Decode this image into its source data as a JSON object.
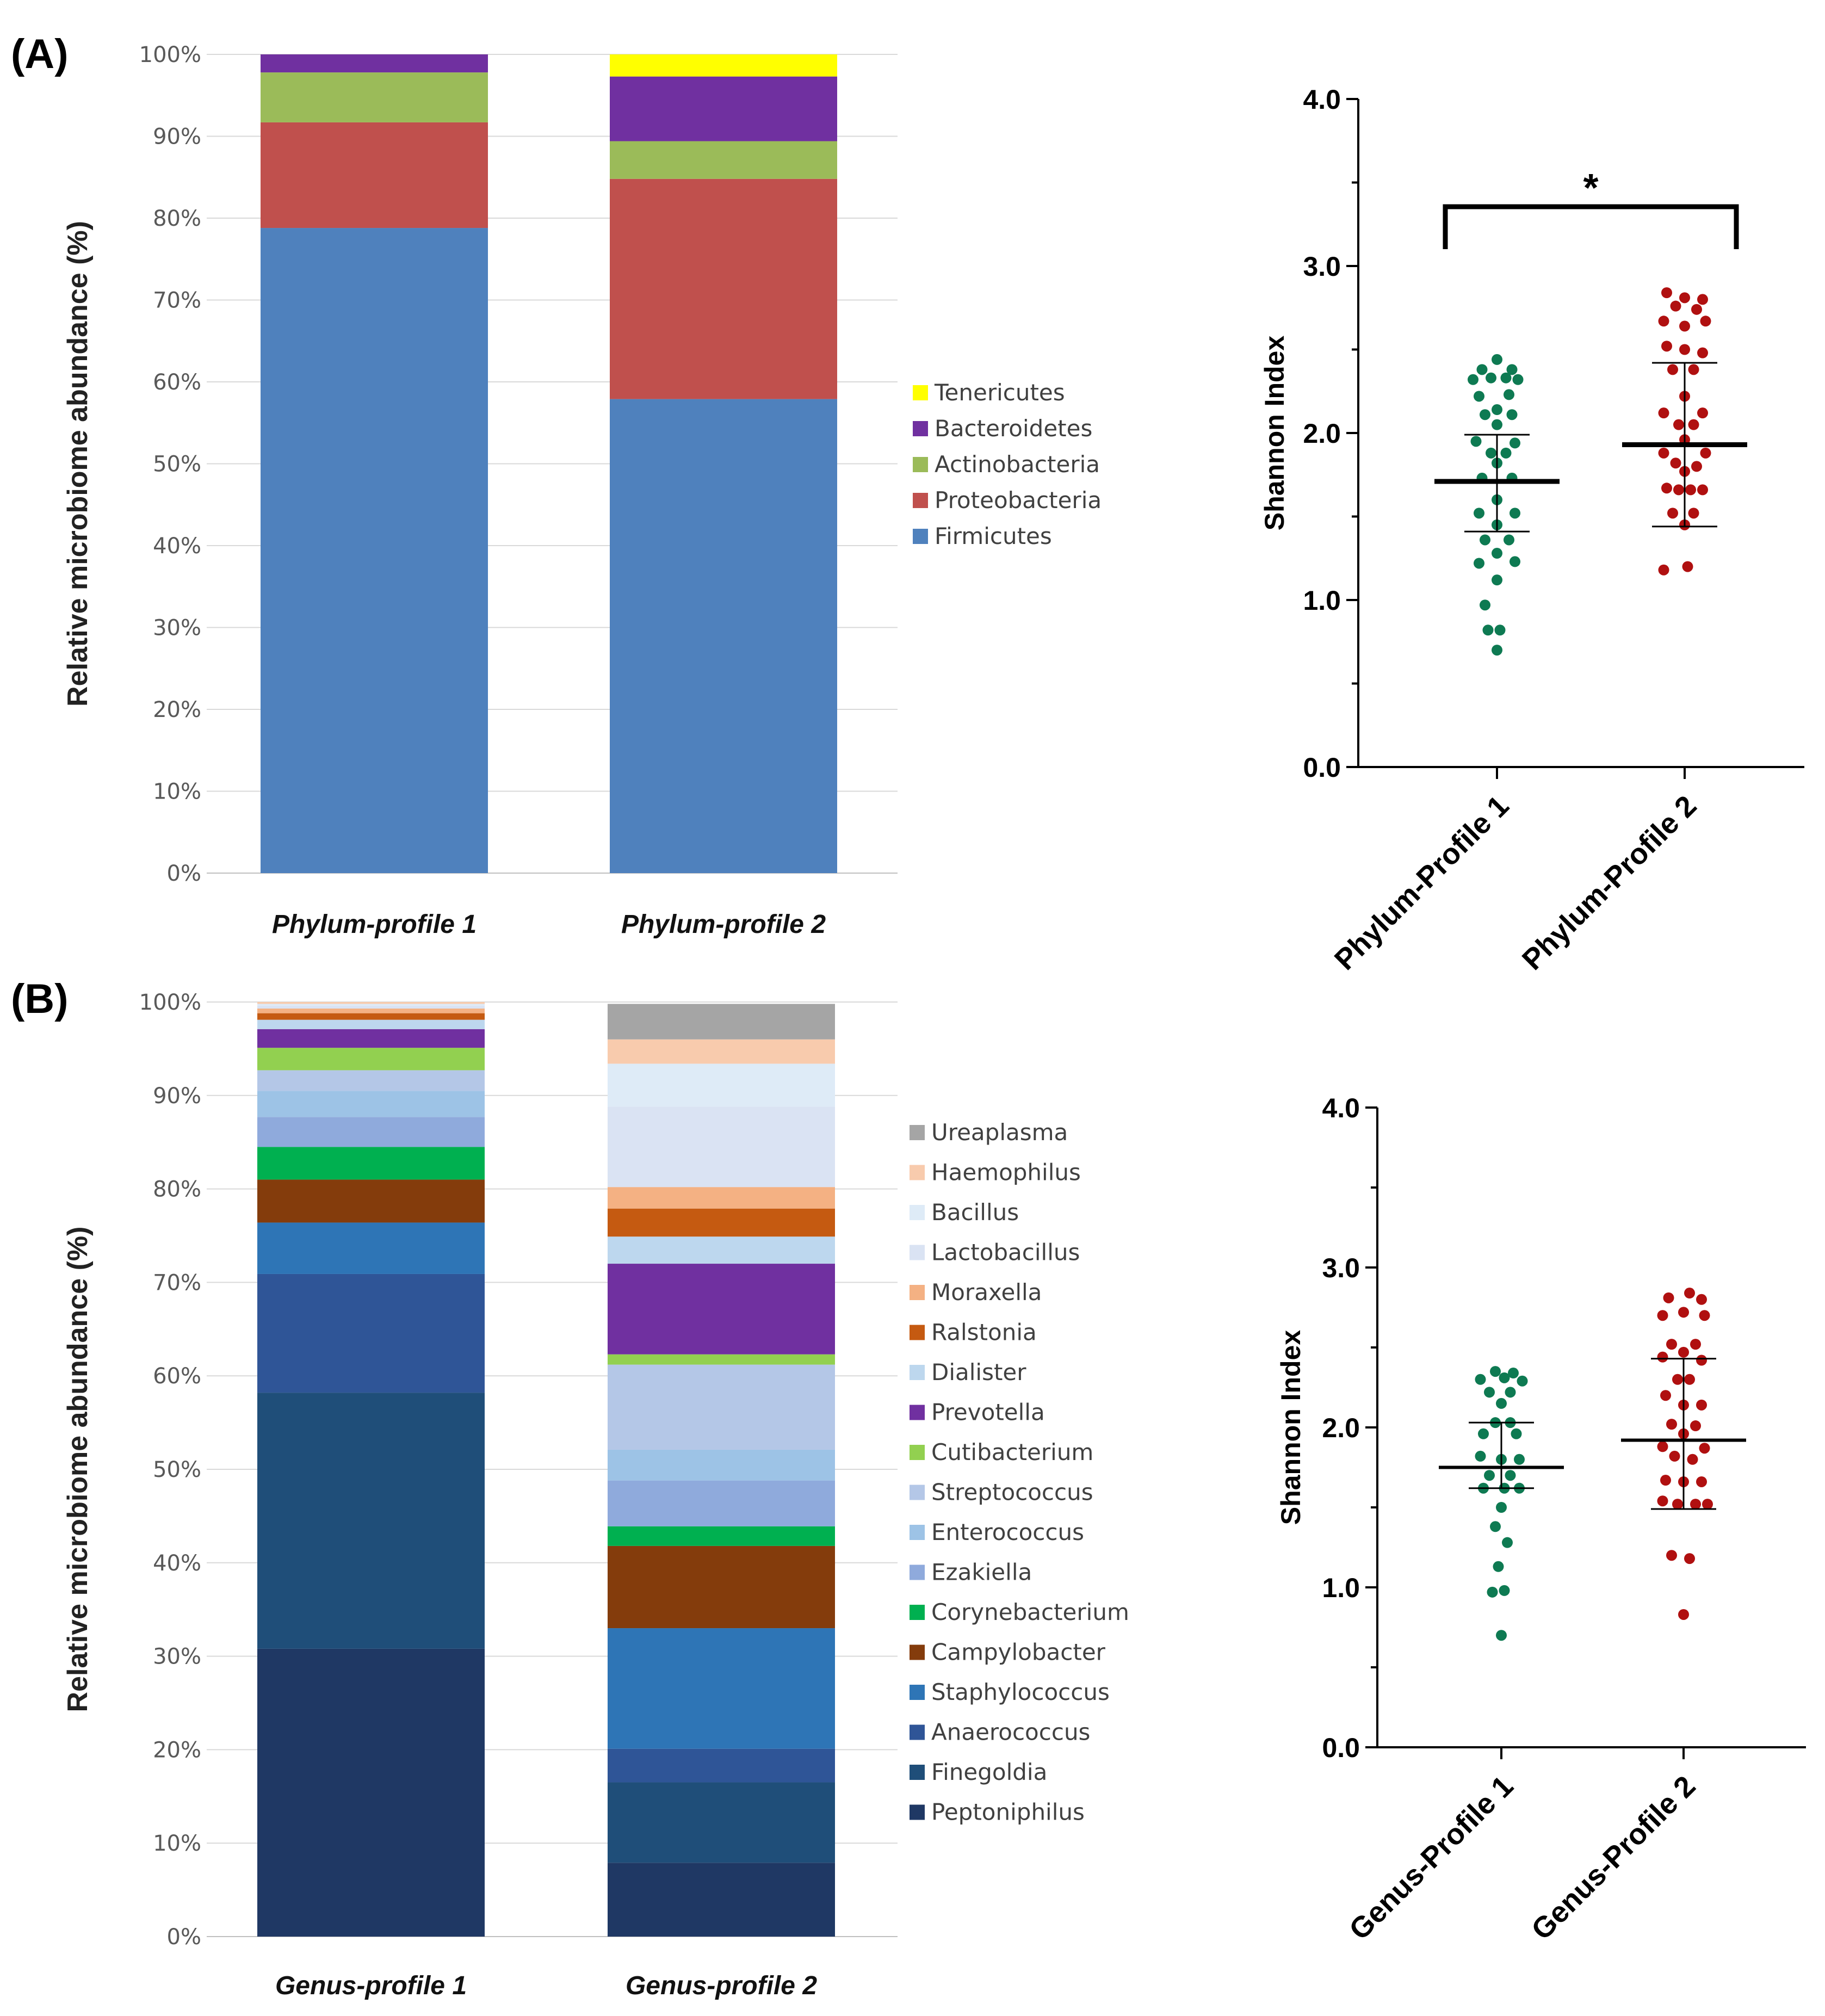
{
  "panels": {
    "a_label": "(A)",
    "b_label": "(B)"
  },
  "chart_data": [
    {
      "type": "bar",
      "stacked": true,
      "id": "phylum-bar",
      "categories": [
        "Phylum-profile 1",
        "Phylum-profile 2"
      ],
      "ylabel": "Relative microbiome abundance (%)",
      "ylim": [
        0,
        100
      ],
      "yticks": [
        "0%",
        "10%",
        "20%",
        "30%",
        "40%",
        "50%",
        "60%",
        "70%",
        "80%",
        "90%",
        "100%"
      ],
      "grid": true,
      "legend_position": "right",
      "series": [
        {
          "name": "Firmicutes",
          "color": "#4f81bd",
          "values": [
            78.8,
            57.9
          ]
        },
        {
          "name": "Proteobacteria",
          "color": "#c0504d",
          "values": [
            12.9,
            26.9
          ]
        },
        {
          "name": "Actinobacteria",
          "color": "#9bbb59",
          "values": [
            6.1,
            4.6
          ]
        },
        {
          "name": "Bacteroidetes",
          "color": "#7030a0",
          "values": [
            2.2,
            7.9
          ]
        },
        {
          "name": "Tenericutes",
          "color": "#ffff00",
          "values": [
            0.0,
            2.7
          ]
        }
      ]
    },
    {
      "type": "scatter",
      "id": "phylum-shannon",
      "categories": [
        "Phylum-Profile 1",
        "Phylum-Profile 2"
      ],
      "ylabel": "Shannon Index",
      "ylim": [
        0,
        4
      ],
      "yticks": [
        "0.0",
        "1.0",
        "2.0",
        "3.0",
        "4.0"
      ],
      "colors": [
        "#0e7a52",
        "#b01010"
      ],
      "significance": "*",
      "groups": [
        {
          "mean": 1.71,
          "sd_low": 1.41,
          "sd_high": 1.99,
          "points": [
            [
              0,
              2.44
            ],
            [
              -0.25,
              2.38
            ],
            [
              0.25,
              2.38
            ],
            [
              -0.4,
              2.32
            ],
            [
              -0.1,
              2.33
            ],
            [
              0.15,
              2.33
            ],
            [
              0.35,
              2.32
            ],
            [
              -0.3,
              2.22
            ],
            [
              0.2,
              2.23
            ],
            [
              0,
              2.14
            ],
            [
              -0.2,
              2.11
            ],
            [
              0.25,
              2.11
            ],
            [
              0,
              2.05
            ],
            [
              -0.35,
              1.95
            ],
            [
              0.3,
              1.94
            ],
            [
              -0.1,
              1.88
            ],
            [
              0.15,
              1.88
            ],
            [
              0,
              1.82
            ],
            [
              -0.25,
              1.73
            ],
            [
              0.25,
              1.73
            ],
            [
              0,
              1.6
            ],
            [
              -0.3,
              1.52
            ],
            [
              0.3,
              1.52
            ],
            [
              0,
              1.45
            ],
            [
              -0.2,
              1.36
            ],
            [
              0.2,
              1.36
            ],
            [
              0,
              1.28
            ],
            [
              -0.3,
              1.22
            ],
            [
              0.3,
              1.23
            ],
            [
              0,
              1.12
            ],
            [
              -0.2,
              0.97
            ],
            [
              0.05,
              0.82
            ],
            [
              -0.15,
              0.82
            ],
            [
              0,
              0.7
            ]
          ]
        },
        {
          "mean": 1.93,
          "sd_low": 1.44,
          "sd_high": 2.42,
          "points": [
            [
              -0.3,
              2.84
            ],
            [
              0,
              2.81
            ],
            [
              0.3,
              2.8
            ],
            [
              -0.15,
              2.76
            ],
            [
              0.2,
              2.74
            ],
            [
              -0.35,
              2.67
            ],
            [
              0.35,
              2.67
            ],
            [
              0,
              2.64
            ],
            [
              -0.3,
              2.52
            ],
            [
              0,
              2.5
            ],
            [
              0.3,
              2.48
            ],
            [
              -0.2,
              2.38
            ],
            [
              0.15,
              2.38
            ],
            [
              0,
              2.22
            ],
            [
              -0.35,
              2.12
            ],
            [
              0.3,
              2.12
            ],
            [
              -0.1,
              2.05
            ],
            [
              0.15,
              2.05
            ],
            [
              0,
              1.96
            ],
            [
              -0.35,
              1.88
            ],
            [
              0.35,
              1.88
            ],
            [
              -0.15,
              1.82
            ],
            [
              0.2,
              1.8
            ],
            [
              0,
              1.77
            ],
            [
              -0.3,
              1.67
            ],
            [
              -0.1,
              1.66
            ],
            [
              0.1,
              1.66
            ],
            [
              0.3,
              1.66
            ],
            [
              -0.2,
              1.52
            ],
            [
              0.15,
              1.52
            ],
            [
              0,
              1.45
            ],
            [
              -0.35,
              1.18
            ],
            [
              0.05,
              1.2
            ]
          ]
        }
      ]
    },
    {
      "type": "bar",
      "stacked": true,
      "id": "genus-bar",
      "categories": [
        "Genus-profile 1",
        "Genus-profile 2"
      ],
      "ylabel": "Relative microbiome abundance (%)",
      "ylim": [
        0,
        100
      ],
      "yticks": [
        "0%",
        "10%",
        "20%",
        "30%",
        "40%",
        "50%",
        "60%",
        "70%",
        "80%",
        "90%",
        "100%"
      ],
      "grid": true,
      "legend_position": "right",
      "series": [
        {
          "name": "Peptoniphilus",
          "color": "#1f3864",
          "values": [
            30.8,
            7.9
          ]
        },
        {
          "name": "Finegoldia",
          "color": "#1f4e79",
          "values": [
            27.4,
            8.6
          ]
        },
        {
          "name": "Anaerococcus",
          "color": "#2f5597",
          "values": [
            12.7,
            3.6
          ]
        },
        {
          "name": "Staphylococcus",
          "color": "#2e75b6",
          "values": [
            5.5,
            12.9
          ]
        },
        {
          "name": "Campylobacter",
          "color": "#843c0c",
          "values": [
            4.6,
            8.8
          ]
        },
        {
          "name": "Corynebacterium",
          "color": "#00b050",
          "values": [
            3.5,
            2.1
          ]
        },
        {
          "name": "Ezakiella",
          "color": "#8faadc",
          "values": [
            3.2,
            4.9
          ]
        },
        {
          "name": "Enterococcus",
          "color": "#9dc3e6",
          "values": [
            2.8,
            3.3
          ]
        },
        {
          "name": "Streptococcus",
          "color": "#b4c7e7",
          "values": [
            2.2,
            9.1
          ]
        },
        {
          "name": "Cutibacterium",
          "color": "#92d050",
          "values": [
            2.4,
            1.1
          ]
        },
        {
          "name": "Prevotella",
          "color": "#7030a0",
          "values": [
            2.0,
            9.7
          ]
        },
        {
          "name": "Dialister",
          "color": "#bdd7ee",
          "values": [
            1.0,
            2.9
          ]
        },
        {
          "name": "Ralstonia",
          "color": "#c55a11",
          "values": [
            0.7,
            3.0
          ]
        },
        {
          "name": "Moraxella",
          "color": "#f4b183",
          "values": [
            0.5,
            2.3
          ]
        },
        {
          "name": "Lactobacillus",
          "color": "#dae3f3",
          "values": [
            0.3,
            8.6
          ]
        },
        {
          "name": "Bacillus",
          "color": "#deebf7",
          "values": [
            0.2,
            4.6
          ]
        },
        {
          "name": "Haemophilus",
          "color": "#f8cbad",
          "values": [
            0.2,
            2.6
          ]
        },
        {
          "name": "Ureaplasma",
          "color": "#a5a5a5",
          "values": [
            0.0,
            3.8
          ]
        }
      ]
    },
    {
      "type": "scatter",
      "id": "genus-shannon",
      "categories": [
        "Genus-Profile 1",
        "Genus-Profile 2"
      ],
      "ylabel": "Shannon Index",
      "ylim": [
        0,
        4
      ],
      "yticks": [
        "0.0",
        "1.0",
        "2.0",
        "3.0",
        "4.0"
      ],
      "colors": [
        "#0e7a52",
        "#b01010"
      ],
      "significance": "",
      "groups": [
        {
          "mean": 1.75,
          "sd_low": 1.62,
          "sd_high": 2.03,
          "points": [
            [
              -0.1,
              2.35
            ],
            [
              0.2,
              2.34
            ],
            [
              -0.35,
              2.3
            ],
            [
              0.05,
              2.31
            ],
            [
              0.35,
              2.29
            ],
            [
              -0.2,
              2.22
            ],
            [
              0.15,
              2.22
            ],
            [
              0,
              2.15
            ],
            [
              -0.1,
              2.03
            ],
            [
              0.15,
              2.03
            ],
            [
              -0.3,
              1.96
            ],
            [
              0.25,
              1.96
            ],
            [
              -0.35,
              1.82
            ],
            [
              0,
              1.8
            ],
            [
              0.3,
              1.8
            ],
            [
              -0.2,
              1.7
            ],
            [
              0.15,
              1.7
            ],
            [
              -0.3,
              1.62
            ],
            [
              0.05,
              1.62
            ],
            [
              0.3,
              1.62
            ],
            [
              0,
              1.5
            ],
            [
              -0.1,
              1.38
            ],
            [
              0.1,
              1.28
            ],
            [
              -0.05,
              1.13
            ],
            [
              0.05,
              0.98
            ],
            [
              -0.15,
              0.97
            ],
            [
              0,
              0.7
            ]
          ]
        },
        {
          "mean": 1.92,
          "sd_low": 1.49,
          "sd_high": 2.43,
          "points": [
            [
              0.1,
              2.84
            ],
            [
              -0.25,
              2.81
            ],
            [
              0.3,
              2.8
            ],
            [
              0,
              2.72
            ],
            [
              -0.35,
              2.7
            ],
            [
              0.35,
              2.7
            ],
            [
              -0.2,
              2.52
            ],
            [
              0.2,
              2.52
            ],
            [
              0,
              2.47
            ],
            [
              -0.35,
              2.44
            ],
            [
              0.3,
              2.42
            ],
            [
              -0.1,
              2.3
            ],
            [
              0.1,
              2.3
            ],
            [
              -0.3,
              2.2
            ],
            [
              0,
              2.14
            ],
            [
              0.3,
              2.14
            ],
            [
              -0.2,
              2.02
            ],
            [
              0.2,
              2.01
            ],
            [
              0,
              1.96
            ],
            [
              -0.35,
              1.88
            ],
            [
              0.35,
              1.87
            ],
            [
              -0.15,
              1.82
            ],
            [
              0.15,
              1.8
            ],
            [
              -0.3,
              1.67
            ],
            [
              0,
              1.66
            ],
            [
              0.3,
              1.66
            ],
            [
              -0.35,
              1.54
            ],
            [
              -0.1,
              1.52
            ],
            [
              0.2,
              1.52
            ],
            [
              0.4,
              1.52
            ],
            [
              -0.2,
              1.2
            ],
            [
              0.1,
              1.18
            ],
            [
              0,
              0.83
            ]
          ]
        }
      ]
    }
  ]
}
